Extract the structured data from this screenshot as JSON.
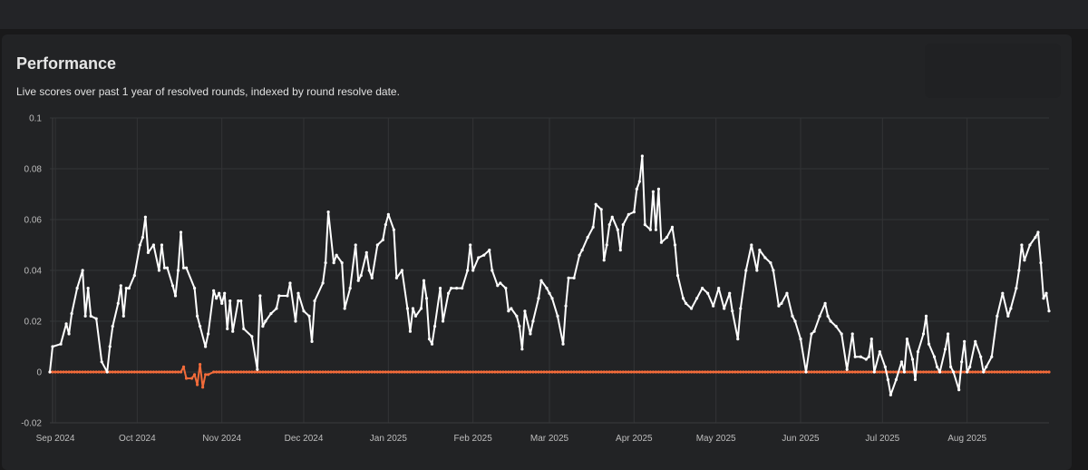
{
  "card": {
    "title": "Performance",
    "subtitle": "Live scores over past 1 year of resolved rounds, indexed by round resolve date."
  },
  "chart_data": {
    "type": "line",
    "title": "Performance",
    "xlabel": "",
    "ylabel": "",
    "x_unit": "days since 2024-09-01",
    "xlim": [
      -2,
      364
    ],
    "ylim": [
      -0.02,
      0.1
    ],
    "grid": true,
    "yticks": [
      {
        "value": 0.1,
        "label": "0.1"
      },
      {
        "value": 0.08,
        "label": "0.08"
      },
      {
        "value": 0.06,
        "label": "0.06"
      },
      {
        "value": 0.04,
        "label": "0.04"
      },
      {
        "value": 0.02,
        "label": "0.02"
      },
      {
        "value": 0,
        "label": "0"
      },
      {
        "value": -0.02,
        "label": "-0.02"
      }
    ],
    "xticks": [
      {
        "value": 0,
        "label": "Sep 2024"
      },
      {
        "value": 30,
        "label": "Oct 2024"
      },
      {
        "value": 61,
        "label": "Nov 2024"
      },
      {
        "value": 91,
        "label": "Dec 2024"
      },
      {
        "value": 122,
        "label": "Jan 2025"
      },
      {
        "value": 153,
        "label": "Feb 2025"
      },
      {
        "value": 181,
        "label": "Mar 2025"
      },
      {
        "value": 212,
        "label": "Apr 2025"
      },
      {
        "value": 242,
        "label": "May 2025"
      },
      {
        "value": 273,
        "label": "Jun 2025"
      },
      {
        "value": 303,
        "label": "Jul 2025"
      },
      {
        "value": 334,
        "label": "Aug 2025"
      }
    ],
    "series": [
      {
        "color": "#ffffff",
        "points": [
          [
            -2,
            0
          ],
          [
            -1,
            0.01
          ],
          [
            2,
            0.011
          ],
          [
            4,
            0.019
          ],
          [
            5,
            0.015
          ],
          [
            6,
            0.023
          ],
          [
            8,
            0.033
          ],
          [
            10,
            0.04
          ],
          [
            11,
            0.022
          ],
          [
            12,
            0.033
          ],
          [
            13,
            0.022
          ],
          [
            15,
            0.021
          ],
          [
            17,
            0.004
          ],
          [
            19,
            0
          ],
          [
            20,
            0.01
          ],
          [
            21,
            0.018
          ],
          [
            23,
            0.027
          ],
          [
            24,
            0.034
          ],
          [
            25,
            0.022
          ],
          [
            26,
            0.033
          ],
          [
            27,
            0.033
          ],
          [
            29,
            0.038
          ],
          [
            31,
            0.05
          ],
          [
            32,
            0.053
          ],
          [
            33,
            0.061
          ],
          [
            34,
            0.047
          ],
          [
            36,
            0.05
          ],
          [
            38,
            0.04
          ],
          [
            39,
            0.05
          ],
          [
            40,
            0.041
          ],
          [
            41,
            0.041
          ],
          [
            43,
            0.034
          ],
          [
            44,
            0.03
          ],
          [
            45,
            0.04
          ],
          [
            46,
            0.055
          ],
          [
            47,
            0.041
          ],
          [
            48,
            0.041
          ],
          [
            51,
            0.033
          ],
          [
            52,
            0.022
          ],
          [
            53,
            0.018
          ],
          [
            55,
            0.01
          ],
          [
            56,
            0.015
          ],
          [
            58,
            0.032
          ],
          [
            59,
            0.029
          ],
          [
            60,
            0.031
          ],
          [
            61,
            0.027
          ],
          [
            62,
            0.031
          ],
          [
            63,
            0.017
          ],
          [
            64,
            0.028
          ],
          [
            65,
            0.016
          ],
          [
            67,
            0.028
          ],
          [
            68,
            0.028
          ],
          [
            69,
            0.017
          ],
          [
            72,
            0.014
          ],
          [
            74,
            0.001
          ],
          [
            75,
            0.03
          ],
          [
            76,
            0.018
          ],
          [
            77,
            0.02
          ],
          [
            79,
            0.023
          ],
          [
            81,
            0.025
          ],
          [
            82,
            0.03
          ],
          [
            85,
            0.03
          ],
          [
            86,
            0.035
          ],
          [
            88,
            0.02
          ],
          [
            89,
            0.031
          ],
          [
            91,
            0.024
          ],
          [
            93,
            0.022
          ],
          [
            94,
            0.012
          ],
          [
            95,
            0.028
          ],
          [
            98,
            0.035
          ],
          [
            99,
            0.043
          ],
          [
            100,
            0.063
          ],
          [
            102,
            0.043
          ],
          [
            103,
            0.046
          ],
          [
            105,
            0.043
          ],
          [
            106,
            0.025
          ],
          [
            108,
            0.033
          ],
          [
            110,
            0.05
          ],
          [
            111,
            0.036
          ],
          [
            112,
            0.038
          ],
          [
            114,
            0.047
          ],
          [
            115,
            0.04
          ],
          [
            116,
            0.037
          ],
          [
            118,
            0.05
          ],
          [
            120,
            0.052
          ],
          [
            121,
            0.058
          ],
          [
            122,
            0.062
          ],
          [
            124,
            0.056
          ],
          [
            125,
            0.037
          ],
          [
            127,
            0.04
          ],
          [
            129,
            0.025
          ],
          [
            130,
            0.016
          ],
          [
            131,
            0.025
          ],
          [
            132,
            0.022
          ],
          [
            134,
            0.025
          ],
          [
            135,
            0.036
          ],
          [
            136,
            0.029
          ],
          [
            137,
            0.013
          ],
          [
            138,
            0.011
          ],
          [
            139,
            0.018
          ],
          [
            141,
            0.033
          ],
          [
            142,
            0.02
          ],
          [
            144,
            0.031
          ],
          [
            145,
            0.033
          ],
          [
            147,
            0.033
          ],
          [
            149,
            0.033
          ],
          [
            151,
            0.04
          ],
          [
            152,
            0.05
          ],
          [
            153,
            0.04
          ],
          [
            155,
            0.045
          ],
          [
            157,
            0.046
          ],
          [
            159,
            0.048
          ],
          [
            160,
            0.04
          ],
          [
            162,
            0.034
          ],
          [
            163,
            0.035
          ],
          [
            165,
            0.033
          ],
          [
            166,
            0.024
          ],
          [
            167,
            0.025
          ],
          [
            169,
            0.022
          ],
          [
            170,
            0.018
          ],
          [
            171,
            0.009
          ],
          [
            172,
            0.024
          ],
          [
            174,
            0.015
          ],
          [
            175,
            0.02
          ],
          [
            177,
            0.029
          ],
          [
            178,
            0.036
          ],
          [
            180,
            0.033
          ],
          [
            181,
            0.031
          ],
          [
            182,
            0.029
          ],
          [
            184,
            0.022
          ],
          [
            186,
            0.011
          ],
          [
            187,
            0.026
          ],
          [
            188,
            0.037
          ],
          [
            190,
            0.037
          ],
          [
            192,
            0.046
          ],
          [
            193,
            0.048
          ],
          [
            195,
            0.053
          ],
          [
            197,
            0.057
          ],
          [
            198,
            0.066
          ],
          [
            200,
            0.064
          ],
          [
            201,
            0.044
          ],
          [
            202,
            0.05
          ],
          [
            203,
            0.058
          ],
          [
            204,
            0.061
          ],
          [
            206,
            0.056
          ],
          [
            207,
            0.048
          ],
          [
            208,
            0.058
          ],
          [
            210,
            0.062
          ],
          [
            212,
            0.063
          ],
          [
            213,
            0.072
          ],
          [
            214,
            0.075
          ],
          [
            215,
            0.085
          ],
          [
            216,
            0.058
          ],
          [
            218,
            0.056
          ],
          [
            219,
            0.071
          ],
          [
            220,
            0.056
          ],
          [
            221,
            0.072
          ],
          [
            222,
            0.051
          ],
          [
            224,
            0.053
          ],
          [
            226,
            0.057
          ],
          [
            227,
            0.05
          ],
          [
            228,
            0.038
          ],
          [
            230,
            0.029
          ],
          [
            231,
            0.027
          ],
          [
            233,
            0.025
          ],
          [
            235,
            0.029
          ],
          [
            237,
            0.033
          ],
          [
            239,
            0.031
          ],
          [
            241,
            0.026
          ],
          [
            243,
            0.033
          ],
          [
            245,
            0.025
          ],
          [
            247,
            0.031
          ],
          [
            248,
            0.024
          ],
          [
            250,
            0.013
          ],
          [
            251,
            0.025
          ],
          [
            253,
            0.04
          ],
          [
            255,
            0.05
          ],
          [
            257,
            0.04
          ],
          [
            258,
            0.048
          ],
          [
            260,
            0.045
          ],
          [
            262,
            0.043
          ],
          [
            263,
            0.04
          ],
          [
            265,
            0.026
          ],
          [
            266,
            0.027
          ],
          [
            268,
            0.031
          ],
          [
            270,
            0.022
          ],
          [
            271,
            0.02
          ],
          [
            273,
            0.013
          ],
          [
            275,
            0.0
          ],
          [
            277,
            0.015
          ],
          [
            278,
            0.016
          ],
          [
            280,
            0.022
          ],
          [
            282,
            0.027
          ],
          [
            283,
            0.022
          ],
          [
            284,
            0.02
          ],
          [
            286,
            0.018
          ],
          [
            288,
            0.015
          ],
          [
            290,
            0.001
          ],
          [
            292,
            0.015
          ],
          [
            293,
            0.006
          ],
          [
            295,
            0.006
          ],
          [
            297,
            0.005
          ],
          [
            298,
            0.006
          ],
          [
            299,
            0.013
          ],
          [
            300,
            0.0
          ],
          [
            302,
            0.008
          ],
          [
            304,
            0.002
          ],
          [
            305,
            -0.003
          ],
          [
            306,
            -0.009
          ],
          [
            308,
            -0.003
          ],
          [
            310,
            0.004
          ],
          [
            311,
            0.0
          ],
          [
            312,
            0.013
          ],
          [
            314,
            0.005
          ],
          [
            315,
            -0.003
          ],
          [
            316,
            0.008
          ],
          [
            318,
            0.015
          ],
          [
            319,
            0.022
          ],
          [
            320,
            0.011
          ],
          [
            322,
            0.006
          ],
          [
            323,
            0.002
          ],
          [
            324,
            0.0
          ],
          [
            326,
            0.009
          ],
          [
            327,
            0.015
          ],
          [
            328,
            0.002
          ],
          [
            329,
            0.0
          ],
          [
            331,
            -0.007
          ],
          [
            332,
            0.004
          ],
          [
            333,
            0.012
          ],
          [
            334,
            0.0
          ],
          [
            335,
            0.002
          ],
          [
            337,
            0.012
          ],
          [
            339,
            0.006
          ],
          [
            340,
            0.0
          ],
          [
            341,
            0.002
          ],
          [
            343,
            0.006
          ],
          [
            345,
            0.022
          ],
          [
            347,
            0.031
          ],
          [
            349,
            0.022
          ],
          [
            350,
            0.025
          ],
          [
            352,
            0.033
          ],
          [
            353,
            0.04
          ],
          [
            354,
            0.05
          ],
          [
            355,
            0.044
          ],
          [
            357,
            0.05
          ],
          [
            359,
            0.053
          ],
          [
            360,
            0.055
          ],
          [
            361,
            0.043
          ],
          [
            362,
            0.029
          ],
          [
            363,
            0.031
          ],
          [
            364,
            0.024
          ]
        ]
      },
      {
        "color": "#f26b3a",
        "points": [
          [
            -2,
            0
          ],
          [
            46,
            0
          ],
          [
            47,
            0.002
          ],
          [
            48,
            -0.0025
          ],
          [
            50,
            -0.0025
          ],
          [
            51,
            -0.001
          ],
          [
            52,
            -0.005
          ],
          [
            53,
            0.003
          ],
          [
            54,
            -0.006
          ],
          [
            55,
            -0.001
          ],
          [
            56,
            -0.001
          ],
          [
            58,
            0
          ],
          [
            364,
            0
          ]
        ]
      }
    ]
  }
}
